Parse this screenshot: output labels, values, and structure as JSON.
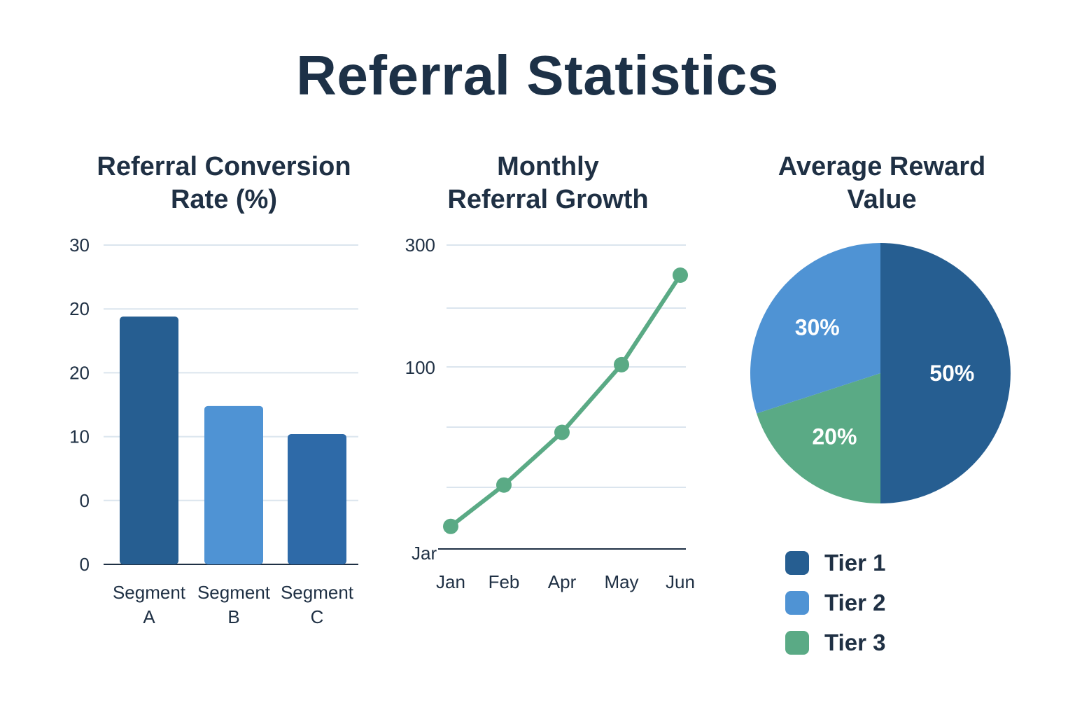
{
  "title": "Referral Statistics",
  "colors": {
    "dark_blue": "#265e91",
    "mid_blue": "#2e6aa8",
    "light_blue": "#4f93d4",
    "green": "#5aaa85",
    "grid": "#dbe5ee",
    "axis": "#1f3044"
  },
  "chart_data": [
    {
      "type": "bar",
      "title": "Referral Conversion\nRate (%)",
      "ytick_labels": [
        "0",
        "0",
        "10",
        "20",
        "20",
        "30"
      ],
      "categories": [
        "Segment\nA",
        "Segment\nB",
        "Segment\nC"
      ],
      "values": [
        19.4,
        12.4,
        10.2
      ],
      "ylim": [
        0,
        25
      ],
      "grid": true
    },
    {
      "type": "line",
      "title": "Monthly\nReferral Growth",
      "ytick_labels": [
        "100",
        "300"
      ],
      "x": [
        "Jan",
        "Feb",
        "Apr",
        "May",
        "Jun"
      ],
      "extra_label": "Jar",
      "values": [
        30,
        85,
        155,
        245,
        364
      ],
      "ylim": [
        0,
        400
      ],
      "grid": true
    },
    {
      "type": "pie",
      "title": "Average Reward\nValue",
      "slices": [
        {
          "label": "Tier 1",
          "value": 50,
          "display": "50%"
        },
        {
          "label": "Tier 3",
          "value": 20,
          "display": "20%"
        },
        {
          "label": "Tier 2",
          "value": 30,
          "display": "30%"
        }
      ],
      "legend": [
        "Tier 1",
        "Tier 2",
        "Tier 3"
      ],
      "legend_placement": "bottom"
    }
  ]
}
